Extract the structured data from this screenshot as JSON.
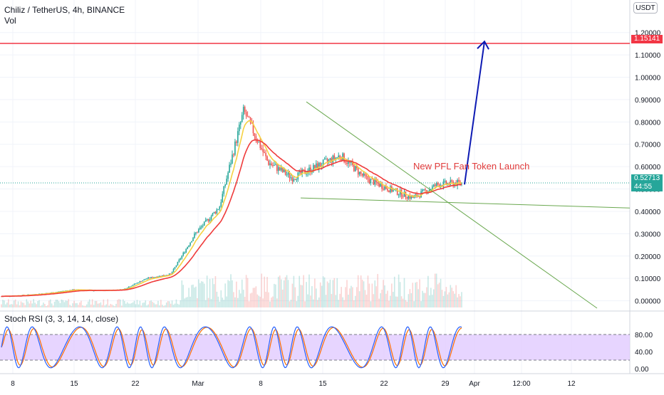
{
  "header": {
    "symbol_line": "Chiliz / TetherUS, 4h, BINANCE",
    "volume_label": "Vol",
    "currency": "USDT"
  },
  "price_axis": {
    "ticks": [
      "1.20000",
      "1.10000",
      "1.00000",
      "0.90000",
      "0.80000",
      "0.70000",
      "0.60000",
      "0.50000",
      "0.40000",
      "0.30000",
      "0.20000",
      "0.10000",
      "0.00000"
    ],
    "target_tag": "1.15141",
    "last_price_tag": "0.52713",
    "countdown_tag": "44:55"
  },
  "time_axis": {
    "labels": [
      "8",
      "15",
      "22",
      "Mar",
      "8",
      "15",
      "22",
      "29",
      "Apr",
      "12:00",
      "12"
    ]
  },
  "annotation": {
    "text": "New PFL Fan Token Launch"
  },
  "indicator": {
    "label": "Stoch RSI (3, 3, 14, 14, close)",
    "ticks": [
      "80.00",
      "40.00",
      "0.00"
    ]
  },
  "colors": {
    "up": "#26a69a",
    "down": "#ef5350",
    "target_line": "#f23645",
    "arrow": "#0d1ab3",
    "trendline": "#6aa84f",
    "ema_fast": "#f5d142",
    "ema_slow": "#ef3b3b",
    "stoch_k": "#2962ff",
    "stoch_d": "#ff6d00",
    "stoch_band": "#e1cbff"
  },
  "chart_data": {
    "type": "candlestick",
    "title": "Chiliz / TetherUS, 4h, BINANCE",
    "interval": "4h",
    "ylim": [
      -0.03,
      1.25
    ],
    "price_scale_ticks": [
      1.2,
      1.1,
      1.0,
      0.9,
      0.8,
      0.7,
      0.6,
      0.5,
      0.4,
      0.3,
      0.2,
      0.1,
      0.0
    ],
    "grid": true,
    "target_level": 1.15141,
    "last_price": 0.52713,
    "close_path": [
      {
        "date": "Feb 2",
        "close": 0.02
      },
      {
        "date": "Feb 8",
        "close": 0.025
      },
      {
        "date": "Feb 15",
        "close": 0.035
      },
      {
        "date": "Feb 17",
        "close": 0.05
      },
      {
        "date": "Feb 22",
        "close": 0.045
      },
      {
        "date": "Mar 1",
        "close": 0.05
      },
      {
        "date": "Mar 4",
        "close": 0.1
      },
      {
        "date": "Mar 6",
        "close": 0.12
      },
      {
        "date": "Mar 8",
        "close": 0.3
      },
      {
        "date": "Mar 10",
        "close": 0.42
      },
      {
        "date": "Mar 11",
        "close": 0.85
      },
      {
        "date": "Mar 13",
        "close": 0.62
      },
      {
        "date": "Mar 15",
        "close": 0.55
      },
      {
        "date": "Mar 17",
        "close": 0.6
      },
      {
        "date": "Mar 19",
        "close": 0.65
      },
      {
        "date": "Mar 21",
        "close": 0.55
      },
      {
        "date": "Mar 24",
        "close": 0.5
      },
      {
        "date": "Mar 26",
        "close": 0.46
      },
      {
        "date": "Mar 28",
        "close": 0.52
      },
      {
        "date": "Mar 30",
        "close": 0.527
      }
    ],
    "stoch_rsi": {
      "ylim": [
        0,
        100
      ],
      "upper_band": 80,
      "lower_band": 20
    }
  }
}
